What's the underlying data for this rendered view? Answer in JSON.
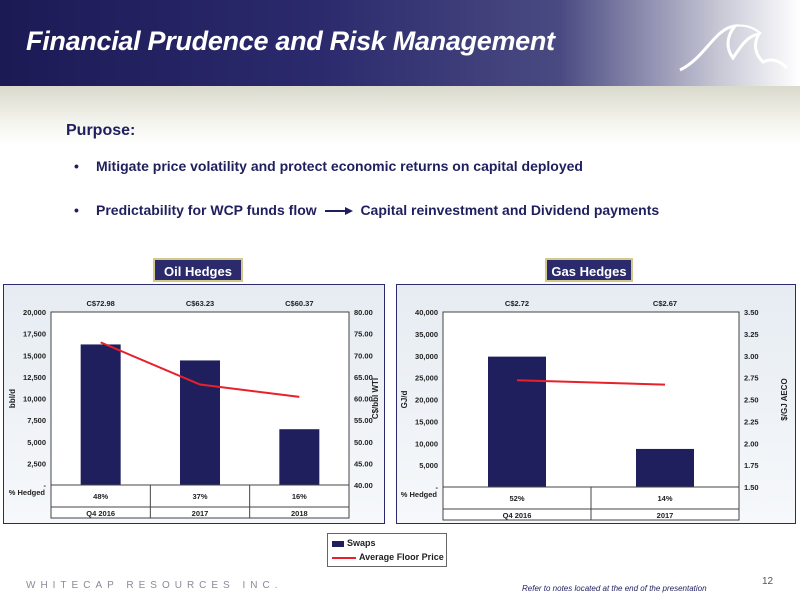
{
  "header": {
    "title": "Financial Prudence and Risk Management"
  },
  "purpose": {
    "heading": "Purpose:",
    "bullet1": "Mitigate price volatility and protect economic returns on capital deployed",
    "bullet2_a": "Predictability for WCP funds flow",
    "bullet2_b": "Capital reinvestment and Dividend payments",
    "bullet_glyph": "•"
  },
  "tags": {
    "oil": "Oil Hedges",
    "gas": "Gas Hedges"
  },
  "legend": {
    "swaps": "Swaps",
    "floor": "Average Floor Price"
  },
  "footer": {
    "company": "WHITECAP RESOURCES INC.",
    "note": "Refer to notes located at the end of the presentation",
    "page": "12"
  },
  "colors": {
    "bar": "#1f1f5e",
    "line": "#e8202a",
    "header": "#2b2a6d"
  },
  "chart_data": [
    {
      "type": "bar",
      "title": "Oil Hedges",
      "categories": [
        "Q4 2016",
        "2017",
        "2018"
      ],
      "series": [
        {
          "name": "Swaps",
          "type": "bar",
          "values": [
            16250,
            14400,
            6450
          ],
          "axis": "left"
        },
        {
          "name": "Average Floor Price",
          "type": "line",
          "values": [
            72.98,
            63.23,
            60.37
          ],
          "axis": "right"
        }
      ],
      "price_labels": [
        "C$72.98",
        "C$63.23",
        "C$60.37"
      ],
      "hedged_label": "% Hedged",
      "hedged": [
        "48%",
        "37%",
        "16%"
      ],
      "ylabel": "bbl/d",
      "y2label": "C$/bbl WTI",
      "ylim": [
        0,
        20000
      ],
      "y2lim": [
        40,
        80
      ],
      "yticks": [
        "20,000",
        "17,500",
        "15,000",
        "12,500",
        "10,000",
        "7,500",
        "5,000",
        "2,500",
        "-"
      ],
      "y2ticks": [
        "80.00",
        "75.00",
        "70.00",
        "65.00",
        "60.00",
        "55.00",
        "50.00",
        "45.00",
        "40.00"
      ]
    },
    {
      "type": "bar",
      "title": "Gas Hedges",
      "categories": [
        "Q4 2016",
        "2017"
      ],
      "series": [
        {
          "name": "Swaps",
          "type": "bar",
          "values": [
            29800,
            8700
          ],
          "axis": "left"
        },
        {
          "name": "Average Floor Price",
          "type": "line",
          "values": [
            2.72,
            2.67
          ],
          "axis": "right"
        }
      ],
      "price_labels": [
        "C$2.72",
        "C$2.67"
      ],
      "hedged_label": "% Hedged",
      "hedged": [
        "52%",
        "14%"
      ],
      "ylabel": "GJ/d",
      "y2label": "$/GJ AECO",
      "ylim": [
        0,
        40000
      ],
      "y2lim": [
        1.5,
        3.5
      ],
      "yticks": [
        "40,000",
        "35,000",
        "30,000",
        "25,000",
        "20,000",
        "15,000",
        "10,000",
        "5,000",
        "-"
      ],
      "y2ticks": [
        "3.50",
        "3.25",
        "3.00",
        "2.75",
        "2.50",
        "2.25",
        "2.00",
        "1.75",
        "1.50"
      ]
    }
  ]
}
